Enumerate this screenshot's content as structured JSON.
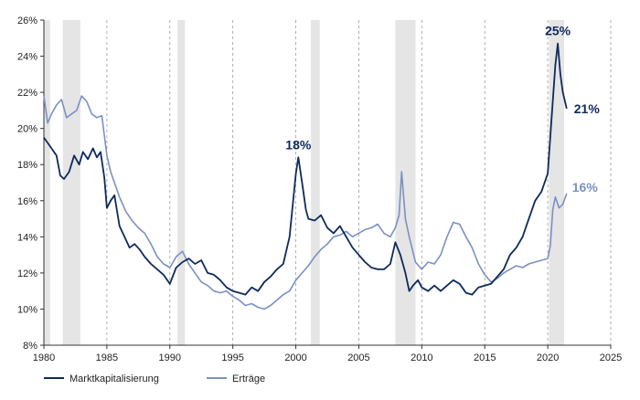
{
  "chart_data": {
    "type": "line",
    "title": "",
    "xlabel": "",
    "ylabel": "",
    "xlim": [
      1980,
      2025
    ],
    "ylim": [
      8,
      26
    ],
    "x_ticks": [
      1980,
      1985,
      1990,
      1995,
      2000,
      2005,
      2010,
      2015,
      2020,
      2025
    ],
    "x_tick_labels": [
      "1980",
      "1985",
      "1990",
      "1995",
      "2000",
      "2005",
      "2010",
      "2015",
      "2020",
      "2025"
    ],
    "y_ticks": [
      8,
      10,
      12,
      14,
      16,
      18,
      20,
      22,
      24,
      26
    ],
    "y_tick_labels": [
      "8%",
      "10%",
      "12%",
      "14%",
      "16%",
      "18%",
      "20%",
      "22%",
      "24%",
      "26%"
    ],
    "recession_bands": [
      [
        1980.0,
        1980.5
      ],
      [
        1981.5,
        1982.9
      ],
      [
        1990.6,
        1991.2
      ],
      [
        2001.2,
        2001.9
      ],
      [
        2007.9,
        2009.5
      ],
      [
        2020.1,
        2021.3
      ]
    ],
    "grid": "vertical dashed at x ticks",
    "legend_position": "bottom-left",
    "colors": {
      "market_cap": "#0e2a5c",
      "earnings": "#7b90c4",
      "band": "#e5e5e5",
      "grid": "#9a9a9a",
      "axis": "#333333"
    },
    "series": [
      {
        "name": "Marktkapitalisierung",
        "points": [
          [
            1980.0,
            19.5
          ],
          [
            1980.5,
            19.0
          ],
          [
            1981.0,
            18.5
          ],
          [
            1981.3,
            17.4
          ],
          [
            1981.6,
            17.2
          ],
          [
            1982.0,
            17.6
          ],
          [
            1982.4,
            18.5
          ],
          [
            1982.8,
            18.0
          ],
          [
            1983.1,
            18.7
          ],
          [
            1983.5,
            18.3
          ],
          [
            1983.9,
            18.9
          ],
          [
            1984.2,
            18.4
          ],
          [
            1984.5,
            18.7
          ],
          [
            1984.8,
            17.3
          ],
          [
            1985.0,
            15.6
          ],
          [
            1985.3,
            16.0
          ],
          [
            1985.6,
            16.3
          ],
          [
            1986.0,
            14.6
          ],
          [
            1986.4,
            14.0
          ],
          [
            1986.8,
            13.4
          ],
          [
            1987.2,
            13.6
          ],
          [
            1987.6,
            13.3
          ],
          [
            1988.0,
            12.9
          ],
          [
            1988.5,
            12.5
          ],
          [
            1989.0,
            12.2
          ],
          [
            1989.5,
            11.9
          ],
          [
            1990.0,
            11.4
          ],
          [
            1990.5,
            12.3
          ],
          [
            1991.0,
            12.6
          ],
          [
            1991.5,
            12.8
          ],
          [
            1992.0,
            12.5
          ],
          [
            1992.5,
            12.7
          ],
          [
            1993.0,
            12.0
          ],
          [
            1993.5,
            11.9
          ],
          [
            1994.0,
            11.6
          ],
          [
            1994.5,
            11.2
          ],
          [
            1995.0,
            11.0
          ],
          [
            1995.5,
            10.9
          ],
          [
            1996.0,
            10.8
          ],
          [
            1996.5,
            11.2
          ],
          [
            1997.0,
            11.0
          ],
          [
            1997.5,
            11.5
          ],
          [
            1998.0,
            11.8
          ],
          [
            1998.5,
            12.2
          ],
          [
            1999.0,
            12.5
          ],
          [
            1999.5,
            14.0
          ],
          [
            2000.0,
            17.5
          ],
          [
            2000.2,
            18.4
          ],
          [
            2000.5,
            17.0
          ],
          [
            2000.8,
            15.5
          ],
          [
            2001.0,
            15.0
          ],
          [
            2001.5,
            14.9
          ],
          [
            2002.0,
            15.2
          ],
          [
            2002.5,
            14.5
          ],
          [
            2003.0,
            14.2
          ],
          [
            2003.5,
            14.6
          ],
          [
            2004.0,
            14.0
          ],
          [
            2004.5,
            13.4
          ],
          [
            2005.0,
            13.0
          ],
          [
            2005.5,
            12.6
          ],
          [
            2006.0,
            12.3
          ],
          [
            2006.5,
            12.2
          ],
          [
            2007.0,
            12.2
          ],
          [
            2007.5,
            12.5
          ],
          [
            2007.9,
            13.7
          ],
          [
            2008.3,
            13.0
          ],
          [
            2008.7,
            12.0
          ],
          [
            2009.0,
            11.0
          ],
          [
            2009.3,
            11.3
          ],
          [
            2009.7,
            11.6
          ],
          [
            2010.0,
            11.2
          ],
          [
            2010.5,
            11.0
          ],
          [
            2011.0,
            11.3
          ],
          [
            2011.5,
            11.0
          ],
          [
            2012.0,
            11.3
          ],
          [
            2012.5,
            11.6
          ],
          [
            2013.0,
            11.4
          ],
          [
            2013.5,
            10.9
          ],
          [
            2014.0,
            10.8
          ],
          [
            2014.5,
            11.2
          ],
          [
            2015.0,
            11.3
          ],
          [
            2015.5,
            11.4
          ],
          [
            2016.0,
            11.8
          ],
          [
            2016.5,
            12.2
          ],
          [
            2017.0,
            13.0
          ],
          [
            2017.5,
            13.4
          ],
          [
            2018.0,
            14.0
          ],
          [
            2018.5,
            15.0
          ],
          [
            2019.0,
            16.0
          ],
          [
            2019.5,
            16.5
          ],
          [
            2020.0,
            17.5
          ],
          [
            2020.3,
            20.5
          ],
          [
            2020.6,
            23.5
          ],
          [
            2020.8,
            24.7
          ],
          [
            2021.0,
            23.0
          ],
          [
            2021.2,
            22.0
          ],
          [
            2021.5,
            21.1
          ]
        ]
      },
      {
        "name": "Erträge",
        "points": [
          [
            1980.0,
            21.8
          ],
          [
            1980.3,
            20.3
          ],
          [
            1980.6,
            20.8
          ],
          [
            1981.0,
            21.3
          ],
          [
            1981.4,
            21.6
          ],
          [
            1981.8,
            20.6
          ],
          [
            1982.2,
            20.8
          ],
          [
            1982.6,
            21.0
          ],
          [
            1983.0,
            21.8
          ],
          [
            1983.4,
            21.5
          ],
          [
            1983.8,
            20.8
          ],
          [
            1984.2,
            20.6
          ],
          [
            1984.6,
            20.7
          ],
          [
            1985.0,
            18.5
          ],
          [
            1985.3,
            17.6
          ],
          [
            1985.6,
            17.0
          ],
          [
            1986.0,
            16.2
          ],
          [
            1986.5,
            15.4
          ],
          [
            1987.0,
            14.9
          ],
          [
            1987.5,
            14.5
          ],
          [
            1988.0,
            14.2
          ],
          [
            1988.5,
            13.6
          ],
          [
            1989.0,
            12.9
          ],
          [
            1989.5,
            12.5
          ],
          [
            1990.0,
            12.3
          ],
          [
            1990.5,
            12.9
          ],
          [
            1991.0,
            13.2
          ],
          [
            1991.5,
            12.5
          ],
          [
            1992.0,
            12.0
          ],
          [
            1992.5,
            11.5
          ],
          [
            1993.0,
            11.3
          ],
          [
            1993.5,
            11.0
          ],
          [
            1994.0,
            10.9
          ],
          [
            1994.5,
            11.0
          ],
          [
            1995.0,
            10.7
          ],
          [
            1995.5,
            10.5
          ],
          [
            1996.0,
            10.2
          ],
          [
            1996.5,
            10.3
          ],
          [
            1997.0,
            10.1
          ],
          [
            1997.5,
            10.0
          ],
          [
            1998.0,
            10.2
          ],
          [
            1998.5,
            10.5
          ],
          [
            1999.0,
            10.8
          ],
          [
            1999.5,
            11.0
          ],
          [
            2000.0,
            11.6
          ],
          [
            2000.5,
            12.0
          ],
          [
            2001.0,
            12.4
          ],
          [
            2001.5,
            12.9
          ],
          [
            2002.0,
            13.3
          ],
          [
            2002.5,
            13.6
          ],
          [
            2003.0,
            14.0
          ],
          [
            2003.5,
            14.1
          ],
          [
            2004.0,
            14.3
          ],
          [
            2004.5,
            14.0
          ],
          [
            2005.0,
            14.2
          ],
          [
            2005.5,
            14.4
          ],
          [
            2006.0,
            14.5
          ],
          [
            2006.5,
            14.7
          ],
          [
            2007.0,
            14.2
          ],
          [
            2007.5,
            14.0
          ],
          [
            2007.9,
            14.5
          ],
          [
            2008.2,
            15.2
          ],
          [
            2008.4,
            17.6
          ],
          [
            2008.7,
            15.0
          ],
          [
            2009.0,
            14.0
          ],
          [
            2009.5,
            12.6
          ],
          [
            2010.0,
            12.2
          ],
          [
            2010.5,
            12.6
          ],
          [
            2011.0,
            12.5
          ],
          [
            2011.5,
            13.0
          ],
          [
            2012.0,
            14.0
          ],
          [
            2012.5,
            14.8
          ],
          [
            2013.0,
            14.7
          ],
          [
            2013.5,
            14.0
          ],
          [
            2014.0,
            13.4
          ],
          [
            2014.5,
            12.5
          ],
          [
            2015.0,
            11.9
          ],
          [
            2015.5,
            11.5
          ],
          [
            2016.0,
            11.7
          ],
          [
            2016.5,
            12.0
          ],
          [
            2017.0,
            12.2
          ],
          [
            2017.5,
            12.4
          ],
          [
            2018.0,
            12.3
          ],
          [
            2018.5,
            12.5
          ],
          [
            2019.0,
            12.6
          ],
          [
            2019.5,
            12.7
          ],
          [
            2020.0,
            12.8
          ],
          [
            2020.2,
            13.5
          ],
          [
            2020.4,
            15.5
          ],
          [
            2020.6,
            16.2
          ],
          [
            2020.9,
            15.6
          ],
          [
            2021.2,
            15.8
          ],
          [
            2021.5,
            16.4
          ]
        ]
      }
    ],
    "annotations": [
      {
        "text": "18%",
        "series": "Marktkapitalisierung",
        "x": 2000.2,
        "y": 18.4
      },
      {
        "text": "25%",
        "series": "Marktkapitalisierung",
        "x": 2020.8,
        "y": 24.7
      },
      {
        "text": "21%",
        "series": "Marktkapitalisierung",
        "x": 2021.5,
        "y": 21.1
      },
      {
        "text": "16%",
        "series": "Erträge",
        "x": 2021.5,
        "y": 16.4
      }
    ]
  }
}
